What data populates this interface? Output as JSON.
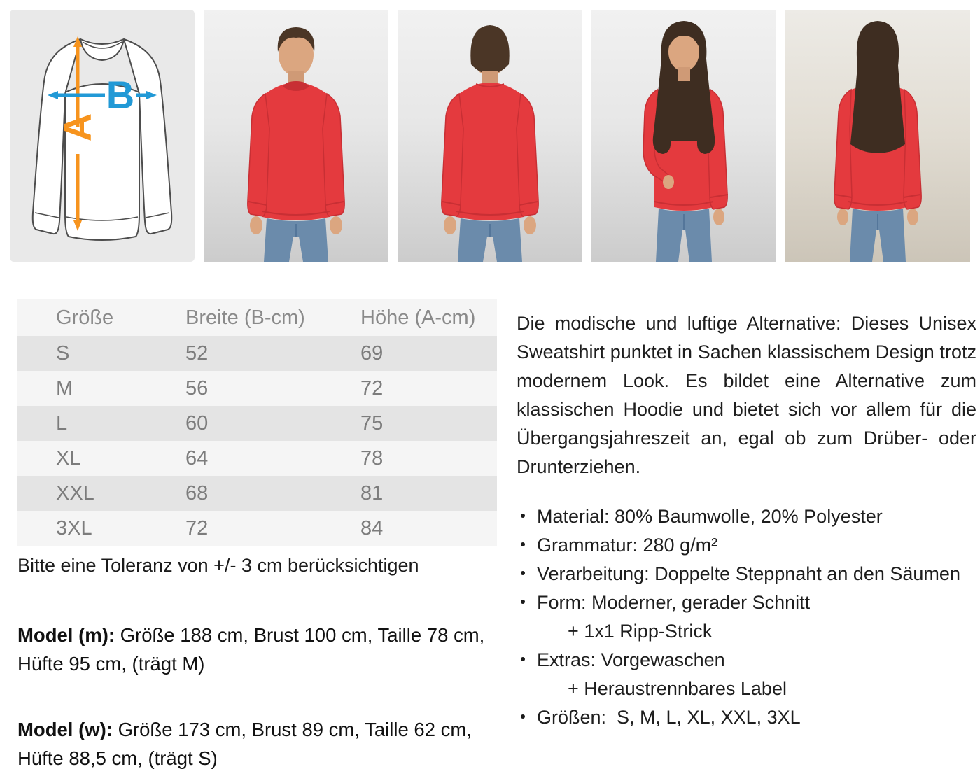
{
  "colors": {
    "sweatshirt_red": "#e43a3e",
    "arrow_orange": "#f7941e",
    "arrow_blue": "#2199d6"
  },
  "gallery": {
    "diagram": {
      "height_label": "A",
      "width_label": "B"
    }
  },
  "size_table": {
    "headers": [
      "Größe",
      "Breite (B-cm)",
      "Höhe (A-cm)"
    ],
    "rows": [
      [
        "S",
        "52",
        "69"
      ],
      [
        "M",
        "56",
        "72"
      ],
      [
        "L",
        "60",
        "75"
      ],
      [
        "XL",
        "64",
        "78"
      ],
      [
        "XXL",
        "68",
        "81"
      ],
      [
        "3XL",
        "72",
        "84"
      ]
    ]
  },
  "tolerance_note": "Bitte eine Toleranz von +/- 3 cm berücksichtigen",
  "models": [
    {
      "label": "Model (m):",
      "text": " Größe 188 cm, Brust 100 cm, Taille 78 cm, Hüfte 95 cm, (trägt M)"
    },
    {
      "label": "Model (w):",
      "text": " Größe 173 cm, Brust 89 cm, Taille 62 cm, Hüfte 88,5 cm, (trägt S)"
    }
  ],
  "description": {
    "paragraph": "Die modische und luftige Alternative: Dieses Unisex Sweatshirt punktet in Sachen klassischem Design trotz modernem Look. Es bildet eine Alternative zum klassischen Hoodie und bietet sich vor allem für die Übergangsjahreszeit an, egal ob zum Drüber- oder Drunterziehen.",
    "bullets": [
      {
        "text": "Material: 80% Baumwolle, 20% Polyester"
      },
      {
        "text": "Grammatur: 280 g/m²"
      },
      {
        "text": "Verarbeitung: Doppelte Steppnaht an den Säumen"
      },
      {
        "text": "Form: Moderner, gerader Schnitt",
        "sub": "+ 1x1 Ripp-Strick"
      },
      {
        "text": "Extras: Vorgewaschen",
        "sub": "+ Heraustrennbares Label"
      },
      {
        "text": "Größen:  S, M, L, XL, XXL, 3XL"
      }
    ]
  }
}
